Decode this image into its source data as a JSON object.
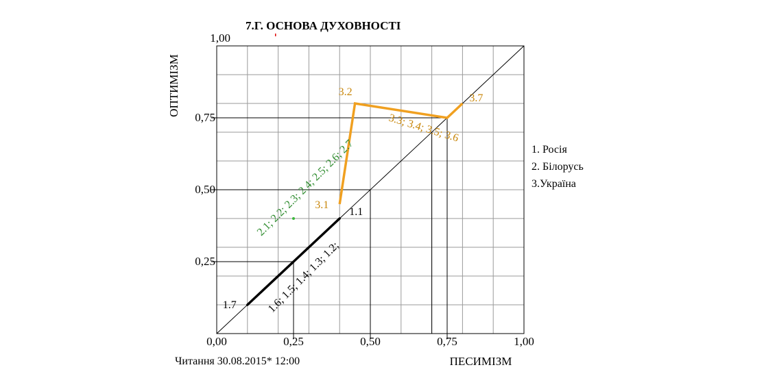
{
  "chart_data": {
    "type": "line",
    "title": "7.Г.  ОСНОВА ДУХОВНОСТІ",
    "xlabel": "ПЕСИМІЗМ",
    "ylabel": "ОПТИМІЗМ",
    "xlim": [
      0,
      1
    ],
    "ylim": [
      0,
      1
    ],
    "grid": true,
    "x_ticks": [
      "0,00",
      "0,25",
      "0,50",
      "0,75",
      "1,00"
    ],
    "y_ticks": [
      "0,25",
      "0,50",
      "0,75",
      "1,00"
    ],
    "footer": "Читання 30.08.2015* 12:00",
    "colors": {
      "russia": "#000000",
      "belarus": "#2e8b2e",
      "ukraine": "#c8860a",
      "ukraine_line": "#f0a020"
    },
    "legend": [
      {
        "label": "1. Росія",
        "color": "#000000"
      },
      {
        "label": "2. Білорусь",
        "color": "#2e8b2e"
      },
      {
        "label": "3.Україна",
        "color": "#c8860a"
      }
    ],
    "series": [
      {
        "key": "russia",
        "points": [
          [
            0.1,
            0.1
          ],
          [
            0.4,
            0.4
          ]
        ],
        "labels": [
          {
            "text": "1.7",
            "x": 0.1,
            "y": 0.1
          },
          {
            "text": "1.1",
            "x": 0.4,
            "y": 0.4
          },
          {
            "text": "1.6; 1.5; 1.4; 1.3; 1.2;",
            "x": 0.27,
            "y": 0.27
          }
        ]
      },
      {
        "key": "belarus",
        "points": [
          [
            0.25,
            0.4
          ]
        ],
        "labels": [
          {
            "text": "2.1; 2.2; 2.3; 2.4; 2.5; 2.6; 2.7",
            "x": 0.33,
            "y": 0.6
          }
        ]
      },
      {
        "key": "ukraine",
        "points": [
          [
            0.4,
            0.45
          ],
          [
            0.45,
            0.8
          ],
          [
            0.75,
            0.75
          ],
          [
            0.8,
            0.8
          ]
        ],
        "labels": [
          {
            "text": "3.1",
            "x": 0.4,
            "y": 0.45
          },
          {
            "text": "3.2",
            "x": 0.45,
            "y": 0.8
          },
          {
            "text": "3.3; 3.4; 3.5; 3.6",
            "x": 0.7,
            "y": 0.72
          },
          {
            "text": "3.7",
            "x": 0.8,
            "y": 0.8
          }
        ]
      }
    ]
  }
}
